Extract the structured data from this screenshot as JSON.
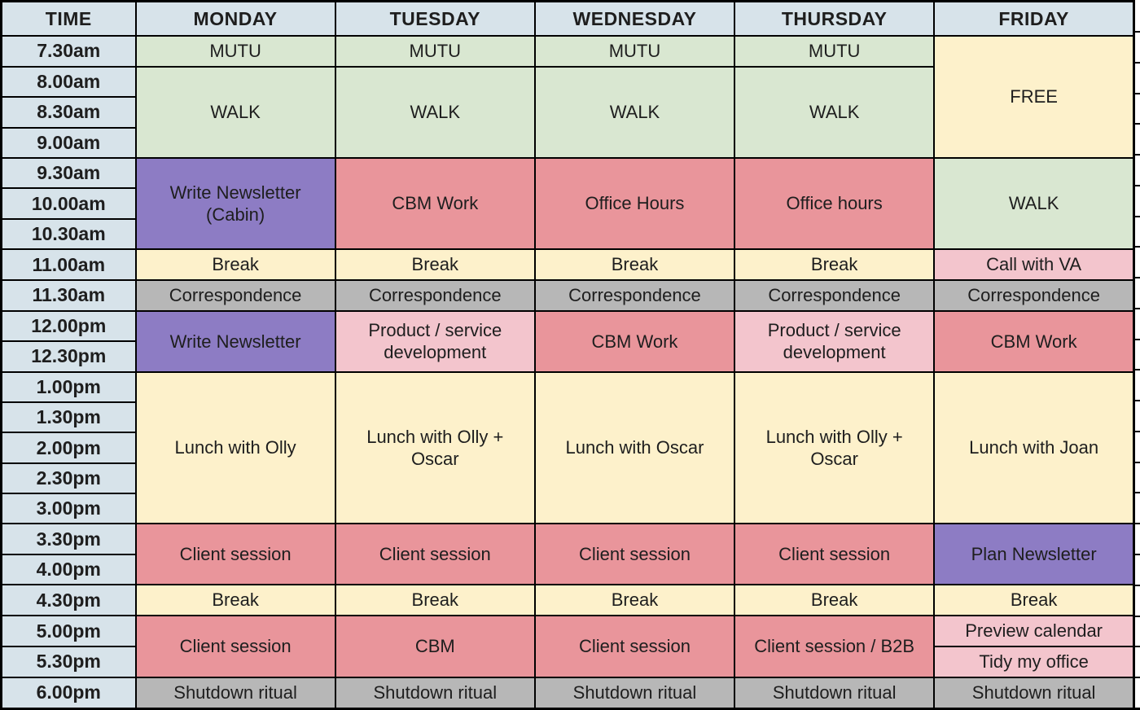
{
  "table": {
    "columns": [
      "TIME",
      "MONDAY",
      "TUESDAY",
      "WEDNESDAY",
      "THURSDAY",
      "FRIDAY"
    ],
    "colors": {
      "header": "#d7e3ea",
      "green": "#d9e7d1",
      "purple": "#8d7cc4",
      "salmon": "#e9959b",
      "yellow": "#fdf1cb",
      "pink": "#f3c5cd",
      "gray": "#b7b7b7",
      "border": "#000000",
      "text": "#1e1e1e"
    },
    "rows": [
      {
        "time": "7.30am",
        "cells": [
          {
            "day": "monday",
            "label": "MUTU",
            "color": "green",
            "rowspan": 1
          },
          {
            "day": "tuesday",
            "label": "MUTU",
            "color": "green",
            "rowspan": 1
          },
          {
            "day": "wednesday",
            "label": "MUTU",
            "color": "green",
            "rowspan": 1
          },
          {
            "day": "thursday",
            "label": "MUTU",
            "color": "green",
            "rowspan": 1
          },
          {
            "day": "friday",
            "label": "FREE",
            "color": "yellow",
            "rowspan": 4
          }
        ]
      },
      {
        "time": "8.00am",
        "cells": [
          {
            "day": "monday",
            "label": "WALK",
            "color": "green",
            "rowspan": 3
          },
          {
            "day": "tuesday",
            "label": "WALK",
            "color": "green",
            "rowspan": 3
          },
          {
            "day": "wednesday",
            "label": "WALK",
            "color": "green",
            "rowspan": 3
          },
          {
            "day": "thursday",
            "label": "WALK",
            "color": "green",
            "rowspan": 3
          }
        ]
      },
      {
        "time": "8.30am",
        "cells": []
      },
      {
        "time": "9.00am",
        "cells": []
      },
      {
        "time": "9.30am",
        "cells": [
          {
            "day": "monday",
            "label": "Write Newsletter (Cabin)",
            "color": "purple",
            "rowspan": 3
          },
          {
            "day": "tuesday",
            "label": "CBM Work",
            "color": "salmon",
            "rowspan": 3
          },
          {
            "day": "wednesday",
            "label": "Office Hours",
            "color": "salmon",
            "rowspan": 3
          },
          {
            "day": "thursday",
            "label": "Office hours",
            "color": "salmon",
            "rowspan": 3
          },
          {
            "day": "friday",
            "label": "WALK",
            "color": "green",
            "rowspan": 3
          }
        ]
      },
      {
        "time": "10.00am",
        "cells": []
      },
      {
        "time": "10.30am",
        "cells": []
      },
      {
        "time": "11.00am",
        "cells": [
          {
            "day": "monday",
            "label": "Break",
            "color": "yellow",
            "rowspan": 1
          },
          {
            "day": "tuesday",
            "label": "Break",
            "color": "yellow",
            "rowspan": 1
          },
          {
            "day": "wednesday",
            "label": "Break",
            "color": "yellow",
            "rowspan": 1
          },
          {
            "day": "thursday",
            "label": "Break",
            "color": "yellow",
            "rowspan": 1
          },
          {
            "day": "friday",
            "label": "Call with VA",
            "color": "pink",
            "rowspan": 1
          }
        ]
      },
      {
        "time": "11.30am",
        "cells": [
          {
            "day": "monday",
            "label": "Correspondence",
            "color": "gray",
            "rowspan": 1
          },
          {
            "day": "tuesday",
            "label": "Correspondence",
            "color": "gray",
            "rowspan": 1
          },
          {
            "day": "wednesday",
            "label": "Correspondence",
            "color": "gray",
            "rowspan": 1
          },
          {
            "day": "thursday",
            "label": "Correspondence",
            "color": "gray",
            "rowspan": 1
          },
          {
            "day": "friday",
            "label": "Correspondence",
            "color": "gray",
            "rowspan": 1
          }
        ]
      },
      {
        "time": "12.00pm",
        "cells": [
          {
            "day": "monday",
            "label": "Write Newsletter",
            "color": "purple",
            "rowspan": 2
          },
          {
            "day": "tuesday",
            "label": "Product / service development",
            "color": "pink",
            "rowspan": 2
          },
          {
            "day": "wednesday",
            "label": "CBM Work",
            "color": "salmon",
            "rowspan": 2
          },
          {
            "day": "thursday",
            "label": "Product / service development",
            "color": "pink",
            "rowspan": 2
          },
          {
            "day": "friday",
            "label": "CBM Work",
            "color": "salmon",
            "rowspan": 2
          }
        ]
      },
      {
        "time": "12.30pm",
        "cells": []
      },
      {
        "time": "1.00pm",
        "cells": [
          {
            "day": "monday",
            "label": "Lunch with Olly",
            "color": "yellow",
            "rowspan": 5
          },
          {
            "day": "tuesday",
            "label": "Lunch with Olly + Oscar",
            "color": "yellow",
            "rowspan": 5
          },
          {
            "day": "wednesday",
            "label": "Lunch with Oscar",
            "color": "yellow",
            "rowspan": 5
          },
          {
            "day": "thursday",
            "label": "Lunch with Olly + Oscar",
            "color": "yellow",
            "rowspan": 5
          },
          {
            "day": "friday",
            "label": "Lunch with Joan",
            "color": "yellow",
            "rowspan": 5
          }
        ]
      },
      {
        "time": "1.30pm",
        "cells": []
      },
      {
        "time": "2.00pm",
        "cells": []
      },
      {
        "time": "2.30pm",
        "cells": []
      },
      {
        "time": "3.00pm",
        "cells": []
      },
      {
        "time": "3.30pm",
        "cells": [
          {
            "day": "monday",
            "label": "Client session",
            "color": "salmon",
            "rowspan": 2
          },
          {
            "day": "tuesday",
            "label": "Client session",
            "color": "salmon",
            "rowspan": 2
          },
          {
            "day": "wednesday",
            "label": "Client session",
            "color": "salmon",
            "rowspan": 2
          },
          {
            "day": "thursday",
            "label": "Client session",
            "color": "salmon",
            "rowspan": 2
          },
          {
            "day": "friday",
            "label": "Plan Newsletter",
            "color": "purple",
            "rowspan": 2
          }
        ]
      },
      {
        "time": "4.00pm",
        "cells": []
      },
      {
        "time": "4.30pm",
        "cells": [
          {
            "day": "monday",
            "label": "Break",
            "color": "yellow",
            "rowspan": 1
          },
          {
            "day": "tuesday",
            "label": "Break",
            "color": "yellow",
            "rowspan": 1
          },
          {
            "day": "wednesday",
            "label": "Break",
            "color": "yellow",
            "rowspan": 1
          },
          {
            "day": "thursday",
            "label": "Break",
            "color": "yellow",
            "rowspan": 1
          },
          {
            "day": "friday",
            "label": "Break",
            "color": "yellow",
            "rowspan": 1
          }
        ]
      },
      {
        "time": "5.00pm",
        "cells": [
          {
            "day": "monday",
            "label": "Client session",
            "color": "salmon",
            "rowspan": 2
          },
          {
            "day": "tuesday",
            "label": "CBM",
            "color": "salmon",
            "rowspan": 2
          },
          {
            "day": "wednesday",
            "label": "Client session",
            "color": "salmon",
            "rowspan": 2
          },
          {
            "day": "thursday",
            "label": "Client session / B2B",
            "color": "salmon",
            "rowspan": 2
          },
          {
            "day": "friday",
            "label": "Preview calendar",
            "color": "pink",
            "rowspan": 1
          }
        ]
      },
      {
        "time": "5.30pm",
        "cells": [
          {
            "day": "friday",
            "label": "Tidy my office",
            "color": "pink",
            "rowspan": 1
          }
        ]
      },
      {
        "time": "6.00pm",
        "cells": [
          {
            "day": "monday",
            "label": "Shutdown ritual",
            "color": "gray",
            "rowspan": 1
          },
          {
            "day": "tuesday",
            "label": "Shutdown ritual",
            "color": "gray",
            "rowspan": 1
          },
          {
            "day": "wednesday",
            "label": "Shutdown ritual",
            "color": "gray",
            "rowspan": 1
          },
          {
            "day": "thursday",
            "label": "Shutdown ritual",
            "color": "gray",
            "rowspan": 1
          },
          {
            "day": "friday",
            "label": "Shutdown ritual",
            "color": "gray",
            "rowspan": 1
          }
        ]
      }
    ]
  }
}
